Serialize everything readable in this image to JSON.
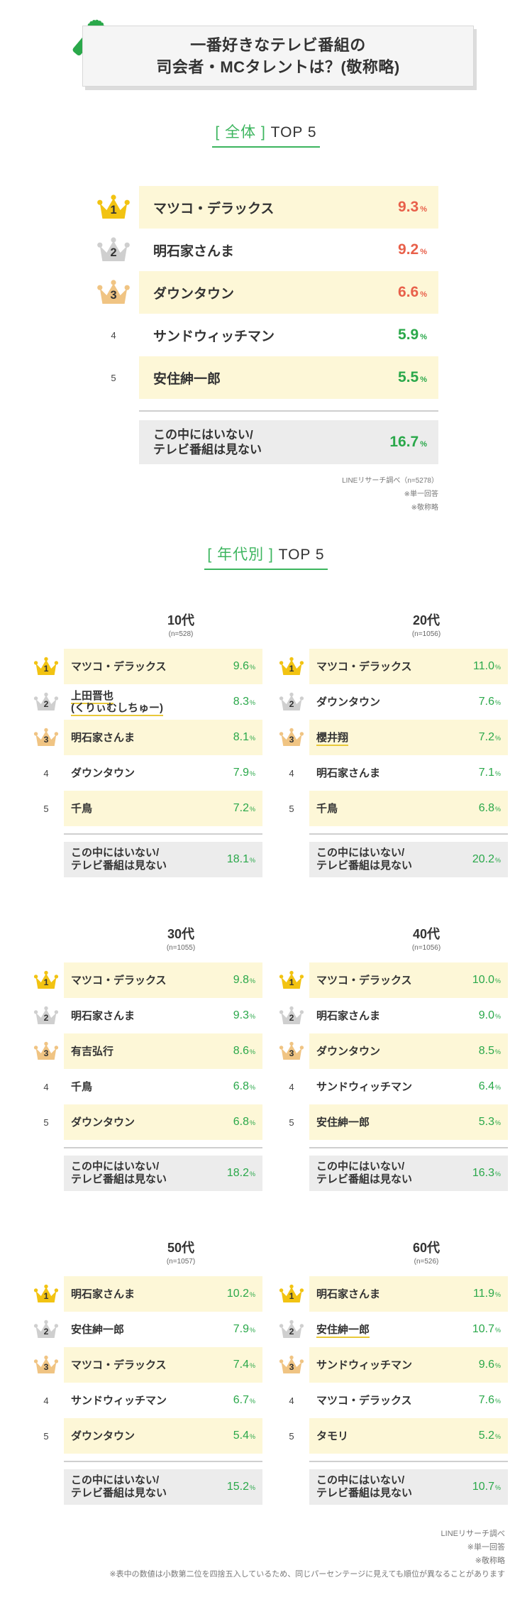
{
  "header": {
    "title_line1": "一番好きなテレビ番組の",
    "title_line2": "司会者・MCタレントは？(敬称略)"
  },
  "overall": {
    "title_bracket_open": "[",
    "title_bracket_label": "全体",
    "title_bracket_close": "]",
    "title_rest": " TOP 5"
  },
  "age_section": {
    "title_bracket_open": "[",
    "title_bracket_label": "年代別",
    "title_bracket_close": "]",
    "title_rest": "TOP 5"
  },
  "percent_sign": "%",
  "overall_notes": [
    "LINEリサーチ調べ（n=5278）",
    "※単一回答",
    "※敬称略"
  ],
  "footer_notes": [
    "LINEリサーチ調べ",
    "※単一回答",
    "※敬称略",
    "※表中の数値は小数第二位を四捨五入しているため、同じパーセンテージに見えても順位が異なることがあります"
  ],
  "colors": {
    "gold": "#f2c312",
    "silver": "#cfcfcf",
    "bronze": "#f0c483",
    "red": "#e8604a",
    "green": "#2aa84a",
    "highlight": "#fdf7d7",
    "other_bg": "#ececec",
    "accent": "#3cb55e"
  },
  "chart_data": [
    {
      "type": "table",
      "title": "全体 TOP 5",
      "n": "",
      "rows": [
        {
          "rank": "1",
          "name": "マツコ・デラックス",
          "value": 9.3
        },
        {
          "rank": "2",
          "name": "明石家さんま",
          "value": 9.2
        },
        {
          "rank": "3",
          "name": "ダウンタウン",
          "value": 6.6
        },
        {
          "rank": "4",
          "name": "サンドウィッチマン",
          "value": 5.9
        },
        {
          "rank": "5",
          "name": "安住紳一郎",
          "value": 5.5
        }
      ],
      "other": {
        "name_line1": "この中にはいない/",
        "name_line2": "テレビ番組は見ない",
        "value": 16.7
      }
    },
    {
      "type": "table",
      "title": "10代",
      "n": "(n=528)",
      "rows": [
        {
          "rank": "1",
          "name": "マツコ・デラックス",
          "value": 9.6
        },
        {
          "rank": "2",
          "name": "上田晋也",
          "name2": "(くりぃむしちゅー)",
          "value": 8.3
        },
        {
          "rank": "3",
          "name": "明石家さんま",
          "value": 8.1
        },
        {
          "rank": "4",
          "name": "ダウンタウン",
          "value": 7.9
        },
        {
          "rank": "5",
          "name": "千鳥",
          "value": 7.2
        }
      ],
      "other": {
        "name_line1": "この中にはいない/",
        "name_line2": "テレビ番組は見ない",
        "value": 18.1
      }
    },
    {
      "type": "table",
      "title": "20代",
      "n": "(n=1056)",
      "rows": [
        {
          "rank": "1",
          "name": "マツコ・デラックス",
          "value": 11.0
        },
        {
          "rank": "2",
          "name": "ダウンタウン",
          "value": 7.6
        },
        {
          "rank": "3",
          "name": "櫻井翔",
          "value": 7.2
        },
        {
          "rank": "4",
          "name": "明石家さんま",
          "value": 7.1
        },
        {
          "rank": "5",
          "name": "千鳥",
          "value": 6.8
        }
      ],
      "other": {
        "name_line1": "この中にはいない/",
        "name_line2": "テレビ番組は見ない",
        "value": 20.2
      }
    },
    {
      "type": "table",
      "title": "30代",
      "n": "(n=1055)",
      "rows": [
        {
          "rank": "1",
          "name": "マツコ・デラックス",
          "value": 9.8
        },
        {
          "rank": "2",
          "name": "明石家さんま",
          "value": 9.3
        },
        {
          "rank": "3",
          "name": "有吉弘行",
          "value": 8.6
        },
        {
          "rank": "4",
          "name": "千鳥",
          "value": 6.8
        },
        {
          "rank": "5",
          "name": "ダウンタウン",
          "value": 6.8
        }
      ],
      "other": {
        "name_line1": "この中にはいない/",
        "name_line2": "テレビ番組は見ない",
        "value": 18.2
      }
    },
    {
      "type": "table",
      "title": "40代",
      "n": "(n=1056)",
      "rows": [
        {
          "rank": "1",
          "name": "マツコ・デラックス",
          "value": 10.0
        },
        {
          "rank": "2",
          "name": "明石家さんま",
          "value": 9.0
        },
        {
          "rank": "3",
          "name": "ダウンタウン",
          "value": 8.5
        },
        {
          "rank": "4",
          "name": "サンドウィッチマン",
          "value": 6.4
        },
        {
          "rank": "5",
          "name": "安住紳一郎",
          "value": 5.3
        }
      ],
      "other": {
        "name_line1": "この中にはいない/",
        "name_line2": "テレビ番組は見ない",
        "value": 16.3
      }
    },
    {
      "type": "table",
      "title": "50代",
      "n": "(n=1057)",
      "rows": [
        {
          "rank": "1",
          "name": "明石家さんま",
          "value": 10.2
        },
        {
          "rank": "2",
          "name": "安住紳一郎",
          "value": 7.9
        },
        {
          "rank": "3",
          "name": "マツコ・デラックス",
          "value": 7.4
        },
        {
          "rank": "4",
          "name": "サンドウィッチマン",
          "value": 6.7
        },
        {
          "rank": "5",
          "name": "ダウンタウン",
          "value": 5.4
        }
      ],
      "other": {
        "name_line1": "この中にはいない/",
        "name_line2": "テレビ番組は見ない",
        "value": 15.2
      }
    },
    {
      "type": "table",
      "title": "60代",
      "n": "(n=526)",
      "rows": [
        {
          "rank": "1",
          "name": "明石家さんま",
          "value": 11.9
        },
        {
          "rank": "2",
          "name": "安住紳一郎",
          "value": 10.7
        },
        {
          "rank": "3",
          "name": "サンドウィッチマン",
          "value": 9.6
        },
        {
          "rank": "4",
          "name": "マツコ・デラックス",
          "value": 7.6
        },
        {
          "rank": "5",
          "name": "タモリ",
          "value": 5.2
        }
      ],
      "other": {
        "name_line1": "この中にはいない/",
        "name_line2": "テレビ番組は見ない",
        "value": 10.7
      }
    }
  ]
}
